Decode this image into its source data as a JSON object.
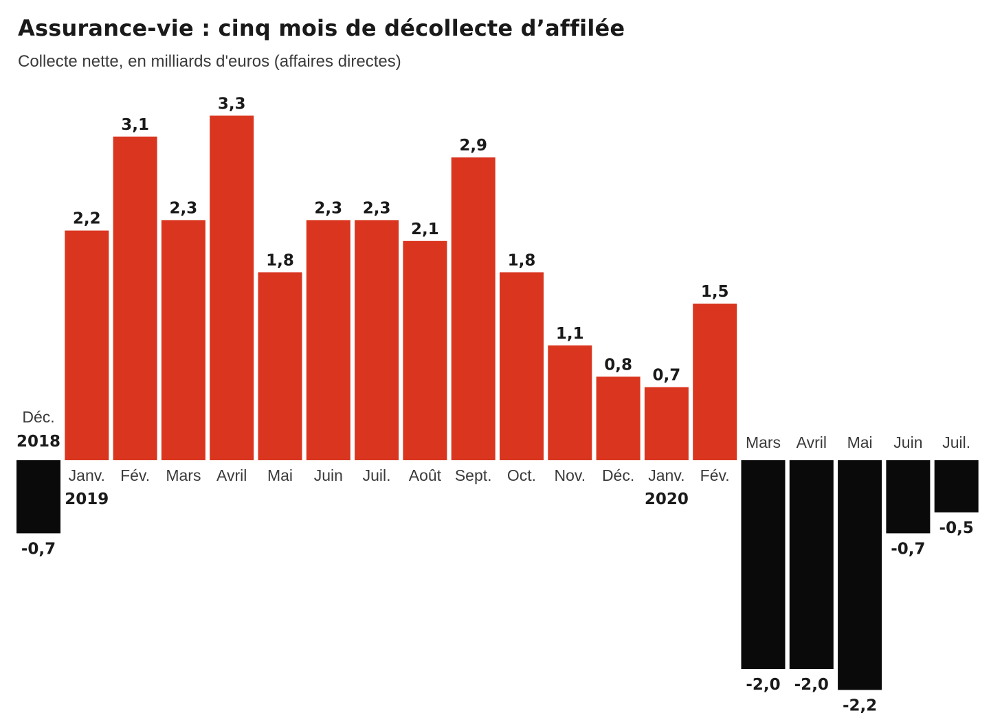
{
  "title": "Assurance-vie : cinq mois de décollecte d’affilée",
  "subtitle": "Collecte nette, en milliards d'euros (affaires directes)",
  "colors": {
    "positive": "#d9351f",
    "negative": "#0a0a0a"
  },
  "chart_data": {
    "type": "bar",
    "title": "Assurance-vie : cinq mois de décollecte d’affilée",
    "subtitle": "Collecte nette, en milliards d'euros (affaires directes)",
    "xlabel": "",
    "ylabel": "",
    "grid": false,
    "legend": "none",
    "ylim": [
      -2.2,
      3.3
    ],
    "categories": [
      "Déc.",
      "Janv.",
      "Fév.",
      "Mars",
      "Avril",
      "Mai",
      "Juin",
      "Juil.",
      "Août",
      "Sept.",
      "Oct.",
      "Nov.",
      "Déc.",
      "Janv.",
      "Fév.",
      "Mars",
      "Avril",
      "Mai",
      "Juin",
      "Juil."
    ],
    "years": {
      "0": "2018",
      "1": "2019",
      "13": "2020"
    },
    "values": [
      -0.7,
      2.2,
      3.1,
      2.3,
      3.3,
      1.8,
      2.3,
      2.3,
      2.1,
      2.9,
      1.8,
      1.1,
      0.8,
      0.7,
      1.5,
      -2.0,
      -2.0,
      -2.2,
      -0.7,
      -0.5
    ],
    "value_labels": [
      "-0,7",
      "2,2",
      "3,1",
      "2,3",
      "3,3",
      "1,8",
      "2,3",
      "2,3",
      "2,1",
      "2,9",
      "1,8",
      "1,1",
      "0,8",
      "0,7",
      "1,5",
      "-2,0",
      "-2,0",
      "-2,2",
      "-0,7",
      "-0,5"
    ]
  }
}
